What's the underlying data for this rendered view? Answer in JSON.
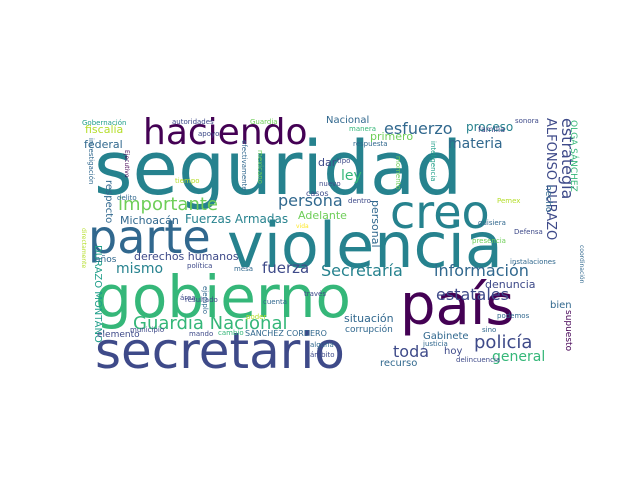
{
  "palette": {
    "purple": "#440154",
    "indigo": "#3e4a89",
    "blue": "#31688e",
    "teal": "#26828e",
    "green": "#1f9e89",
    "mint": "#35b779",
    "lime": "#6ece58",
    "yellowgreen": "#b5de2b",
    "yellow": "#fde725"
  },
  "words": [
    {
      "text": "seguridad",
      "c": "teal"
    },
    {
      "text": "violencia",
      "c": "teal"
    },
    {
      "text": "gobierno",
      "c": "mint"
    },
    {
      "text": "país",
      "c": "purple"
    },
    {
      "text": "secretario",
      "c": "indigo"
    },
    {
      "text": "parte",
      "c": "blue"
    },
    {
      "text": "creo",
      "c": "teal"
    },
    {
      "text": "haciendo",
      "c": "purple"
    },
    {
      "text": "Guardia Nacional",
      "c": "mint"
    },
    {
      "text": "importante",
      "c": "lime"
    },
    {
      "text": "policía",
      "c": "indigo"
    },
    {
      "text": "esfuerzo",
      "c": "blue"
    },
    {
      "text": "Secretaría",
      "c": "teal"
    },
    {
      "text": "información",
      "c": "blue"
    },
    {
      "text": "persona",
      "c": "blue"
    },
    {
      "text": "estrategia",
      "c": "indigo"
    },
    {
      "text": "estatales",
      "c": "indigo"
    },
    {
      "text": "fuerza",
      "c": "indigo"
    },
    {
      "text": "toda",
      "c": "indigo"
    },
    {
      "text": "mismo",
      "c": "teal"
    },
    {
      "text": "materia",
      "c": "blue"
    },
    {
      "text": "ley",
      "c": "mint"
    },
    {
      "text": "general",
      "c": "mint"
    },
    {
      "text": "Fuerzas Armadas",
      "c": "teal"
    },
    {
      "text": "ALFONSO DURAZO",
      "c": "indigo"
    },
    {
      "text": "fiscalía",
      "c": "yellowgreen"
    },
    {
      "text": "proceso",
      "c": "teal"
    },
    {
      "text": "derechos humanos",
      "c": "indigo"
    },
    {
      "text": "Michoacán",
      "c": "blue"
    },
    {
      "text": "Nacional",
      "c": "blue"
    },
    {
      "text": "denuncia",
      "c": "indigo"
    },
    {
      "text": "situación",
      "c": "blue"
    },
    {
      "text": "federal",
      "c": "blue"
    },
    {
      "text": "personal",
      "c": "blue"
    },
    {
      "text": "Adelante",
      "c": "lime"
    },
    {
      "text": "recurso",
      "c": "blue"
    },
    {
      "text": "respecto",
      "c": "blue"
    },
    {
      "text": "DURAZO MONTAÑO",
      "c": "green"
    },
    {
      "text": "primero",
      "c": "lime"
    },
    {
      "text": "dar",
      "c": "indigo"
    },
    {
      "text": "hoy",
      "c": "indigo"
    },
    {
      "text": "Gabinete",
      "c": "blue"
    },
    {
      "text": "bien",
      "c": "blue"
    },
    {
      "text": "supuesto",
      "c": "purple"
    },
    {
      "text": "corrupción",
      "c": "blue"
    },
    {
      "text": "OLGA SÁNCHEZ",
      "c": "mint"
    },
    {
      "text": "hecho",
      "c": "blue"
    },
    {
      "text": "familia",
      "c": "indigo"
    },
    {
      "text": "años",
      "c": "blue"
    },
    {
      "text": "elemento",
      "c": "indigo"
    },
    {
      "text": "SÁNCHEZ CORDERO",
      "c": "blue"
    },
    {
      "text": "Gobernación",
      "c": "green"
    },
    {
      "text": "autoridades",
      "c": "indigo"
    },
    {
      "text": "Guardia",
      "c": "lime"
    },
    {
      "text": "manera",
      "c": "mint"
    },
    {
      "text": "sonora",
      "c": "indigo"
    },
    {
      "text": "apoyo",
      "c": "indigo"
    },
    {
      "text": "respuesta",
      "c": "blue"
    },
    {
      "text": "investigación",
      "c": "blue"
    },
    {
      "text": "Ejecutivo",
      "c": "purple"
    },
    {
      "text": "efectivamente",
      "c": "blue"
    },
    {
      "text": "mexicano",
      "c": "lime"
    },
    {
      "text": "tiempo",
      "c": "yellowgreen"
    },
    {
      "text": "nuevo",
      "c": "indigo"
    },
    {
      "text": "casos",
      "c": "indigo"
    },
    {
      "text": "tipo",
      "c": "indigo"
    },
    {
      "text": "inteligencia",
      "c": "green"
    },
    {
      "text": "momento",
      "c": "lime"
    },
    {
      "text": "delito",
      "c": "blue"
    },
    {
      "text": "área",
      "c": "indigo"
    },
    {
      "text": "municipio",
      "c": "indigo"
    },
    {
      "text": "mando",
      "c": "indigo"
    },
    {
      "text": "política",
      "c": "indigo"
    },
    {
      "text": "mesa",
      "c": "blue"
    },
    {
      "text": "resultado",
      "c": "indigo"
    },
    {
      "text": "poder",
      "c": "yellowgreen"
    },
    {
      "text": "cambio",
      "c": "mint"
    },
    {
      "text": "ejemplo",
      "c": "blue"
    },
    {
      "text": "cuenta",
      "c": "blue"
    },
    {
      "text": "través",
      "c": "indigo"
    },
    {
      "text": "alguna",
      "c": "blue"
    },
    {
      "text": "ámbito",
      "c": "indigo"
    },
    {
      "text": "justicia",
      "c": "blue"
    },
    {
      "text": "delincuencia",
      "c": "indigo"
    },
    {
      "text": "sino",
      "c": "blue"
    },
    {
      "text": "podemos",
      "c": "blue"
    },
    {
      "text": "instalaciones",
      "c": "blue"
    },
    {
      "text": "coordinación",
      "c": "blue"
    },
    {
      "text": "Defensa",
      "c": "indigo"
    },
    {
      "text": "quisiera",
      "c": "blue"
    },
    {
      "text": "presencia",
      "c": "lime"
    },
    {
      "text": "Pemex",
      "c": "yellowgreen"
    },
    {
      "text": "dentro",
      "c": "indigo"
    },
    {
      "text": "directamente",
      "c": "yellowgreen"
    },
    {
      "text": "vida",
      "c": "yellow"
    }
  ]
}
